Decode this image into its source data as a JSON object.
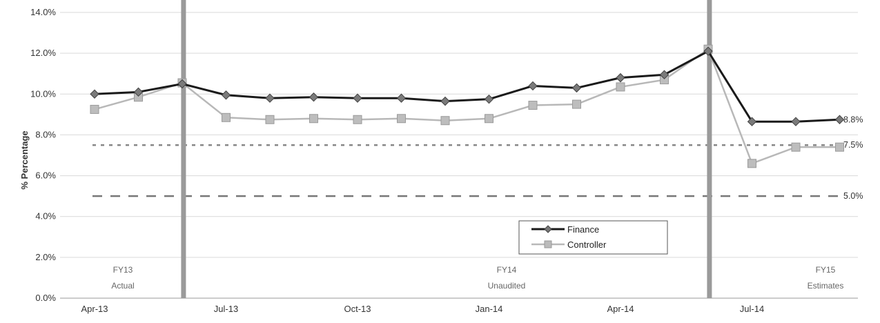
{
  "chart_data": {
    "type": "line",
    "ylabel": "% Percentage",
    "ylim": [
      0,
      14
    ],
    "y_ticks": [
      "0.0%",
      "2.0%",
      "4.0%",
      "6.0%",
      "8.0%",
      "10.0%",
      "12.0%",
      "14.0%"
    ],
    "x_tick_labels": [
      "Apr-13",
      "Jul-13",
      "Oct-13",
      "Jan-14",
      "Apr-14",
      "Jul-14"
    ],
    "categories": [
      "Apr-13",
      "May-13",
      "Jun-13",
      "Jul-13",
      "Aug-13",
      "Sep-13",
      "Oct-13",
      "Nov-13",
      "Dec-13",
      "Jan-14",
      "Feb-14",
      "Mar-14",
      "Apr-14",
      "May-14",
      "Jun-14",
      "Jul-14",
      "Aug-14",
      "Sep-14"
    ],
    "series": [
      {
        "name": "Finance",
        "color": "#1a1a1a",
        "marker": "diamond",
        "values": [
          10.0,
          10.1,
          10.5,
          9.95,
          9.8,
          9.85,
          9.8,
          9.8,
          9.65,
          9.75,
          10.4,
          10.3,
          10.8,
          10.95,
          12.1,
          8.65,
          8.65,
          8.75
        ]
      },
      {
        "name": "Controller",
        "color": "#b8b8b8",
        "marker": "square",
        "values": [
          9.25,
          9.85,
          10.55,
          8.85,
          8.75,
          8.8,
          8.75,
          8.8,
          8.7,
          8.8,
          9.45,
          9.5,
          10.35,
          10.7,
          12.2,
          6.6,
          7.4,
          7.4
        ]
      }
    ],
    "reference_lines": [
      {
        "value": 7.5,
        "label": "7.5%",
        "style": "dotted",
        "color": "#888888"
      },
      {
        "value": 5.0,
        "label": "5.0%",
        "style": "dashed",
        "color": "#777777"
      }
    ],
    "end_label_finance": "8.8%",
    "period_dividers_after_categories": [
      "Jun-13",
      "Jun-14"
    ],
    "periods": [
      {
        "line1": "FY13",
        "line2": "Actual"
      },
      {
        "line1": "FY14",
        "line2": "Unaudited"
      },
      {
        "line1": "FY15",
        "line2": "Estimates"
      }
    ],
    "grid": true,
    "legend_placement": "center-right"
  }
}
